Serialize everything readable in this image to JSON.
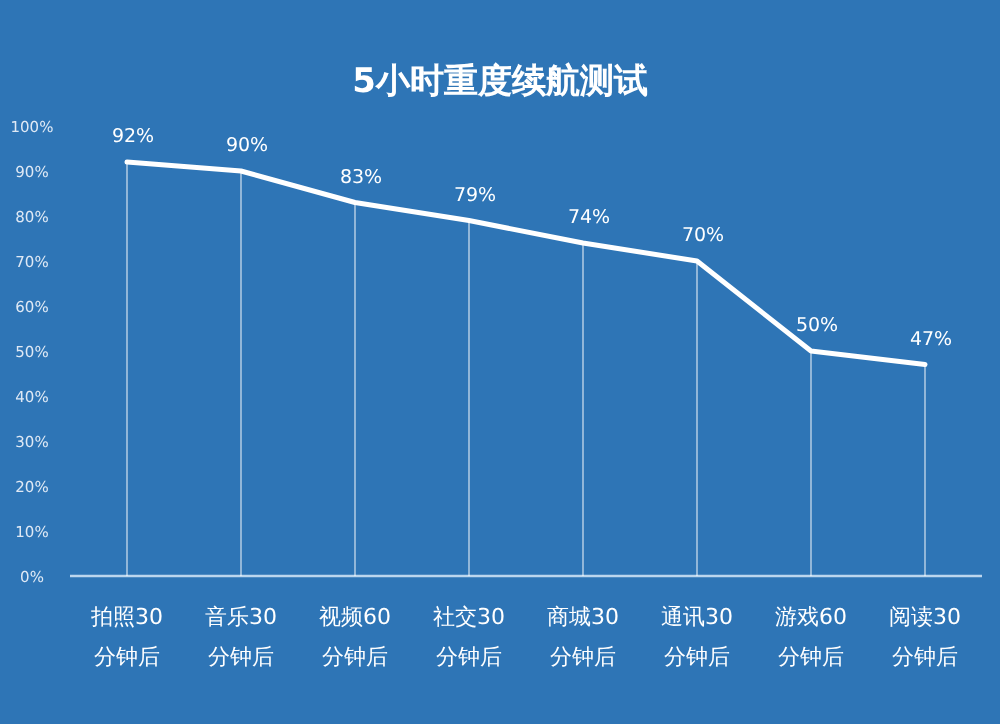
{
  "chart_data": {
    "type": "line",
    "title": "5小时重度续航测试",
    "categories": [
      "拍照30分钟后",
      "音乐30分钟后",
      "视频60分钟后",
      "社交30分钟后",
      "商城30分钟后",
      "通讯30分钟后",
      "游戏60分钟后",
      "阅读30分钟后"
    ],
    "series": [
      {
        "color": "#ffffff",
        "values": [
          92,
          90,
          83,
          79,
          74,
          70,
          50,
          47
        ],
        "value_labels": [
          "92%",
          "90%",
          "83%",
          "79%",
          "74%",
          "70%",
          "50%",
          "47%"
        ]
      }
    ],
    "ylim": [
      0,
      100
    ],
    "yticks": [
      {
        "value": 0,
        "label": "0%"
      },
      {
        "value": 10,
        "label": "10%"
      },
      {
        "value": 20,
        "label": "20%"
      },
      {
        "value": 30,
        "label": "30%"
      },
      {
        "value": 40,
        "label": "40%"
      },
      {
        "value": 50,
        "label": "50%"
      },
      {
        "value": 60,
        "label": "60%"
      },
      {
        "value": 70,
        "label": "70%"
      },
      {
        "value": 80,
        "label": "80%"
      },
      {
        "value": 90,
        "label": "90%"
      },
      {
        "value": 100,
        "label": "100%"
      }
    ],
    "grid": "x",
    "marker": "none",
    "line_style": "solid"
  }
}
